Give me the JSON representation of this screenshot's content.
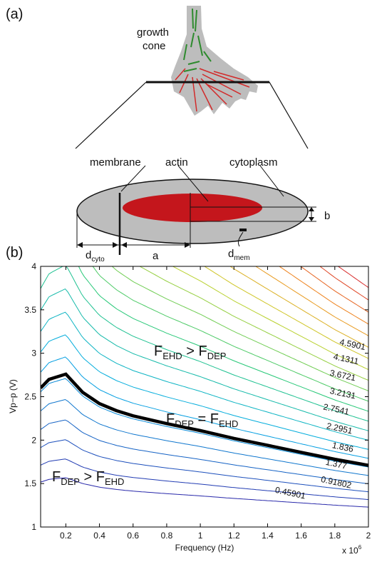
{
  "panel_a": {
    "label": "(a)",
    "growth_cone_line1": "growth",
    "growth_cone_line2": "cone",
    "membrane": "membrane",
    "actin": "actin",
    "cytoplasm": "cytoplasm",
    "dim_b": "b",
    "dim_a": "a",
    "dim_d_cyto_main": "d",
    "dim_d_cyto_sub": "cyto",
    "dim_d_mem_main": "d",
    "dim_d_mem_sub": "mem",
    "colors": {
      "cytoplasm": "#bdbdbd",
      "actin": "#c4161c",
      "microtubule": "#2e8b2e",
      "filament": "#d22a2a"
    }
  },
  "panel_b": {
    "label": "(b)",
    "ylabel": "Vp−p (V)",
    "xlabel": "Frequency (Hz)",
    "x_multiplier": "x 10",
    "x_multiplier_exp": "6",
    "regions": {
      "upper": {
        "F1": "F",
        "s1": "EHD",
        "op": " > ",
        "F2": "F",
        "s2": "DEP"
      },
      "boundary": {
        "F1": "F",
        "s1": "DEP",
        "op": " = ",
        "F2": "F",
        "s2": "EHD"
      },
      "lower": {
        "F1": "F",
        "s1": "DEP",
        "op": " > ",
        "F2": "F",
        "s2": "EHD"
      }
    }
  },
  "chart_data": {
    "type": "contour",
    "xlabel": "Frequency (Hz)",
    "ylabel": "Vp−p (V)",
    "x_scale_note": "x 10^6",
    "xlim": [
      0.05,
      2.0
    ],
    "ylim": [
      1,
      4
    ],
    "x_ticks": [
      "0.2",
      "0.4",
      "0.6",
      "0.8",
      "1",
      "1.2",
      "1.4",
      "1.6",
      "1.8",
      "2"
    ],
    "y_ticks": [
      "1",
      "1.5",
      "2",
      "2.5",
      "3",
      "3.5",
      "4"
    ],
    "contour_levels": [
      "0.45901",
      "0.91802",
      "1.377",
      "1.836",
      "2.2951",
      "2.7541",
      "3.2131",
      "3.6721",
      "4.1311",
      "4.5901"
    ],
    "boundary_curve": {
      "x": [
        0.05,
        0.1,
        0.2,
        0.3,
        0.4,
        0.5,
        0.6,
        0.8,
        1.0,
        1.2,
        1.4,
        1.6,
        1.8,
        2.0
      ],
      "y": [
        2.6,
        2.7,
        2.76,
        2.55,
        2.42,
        2.34,
        2.28,
        2.19,
        2.11,
        2.02,
        1.94,
        1.86,
        1.78,
        1.71
      ]
    },
    "grid": false
  }
}
